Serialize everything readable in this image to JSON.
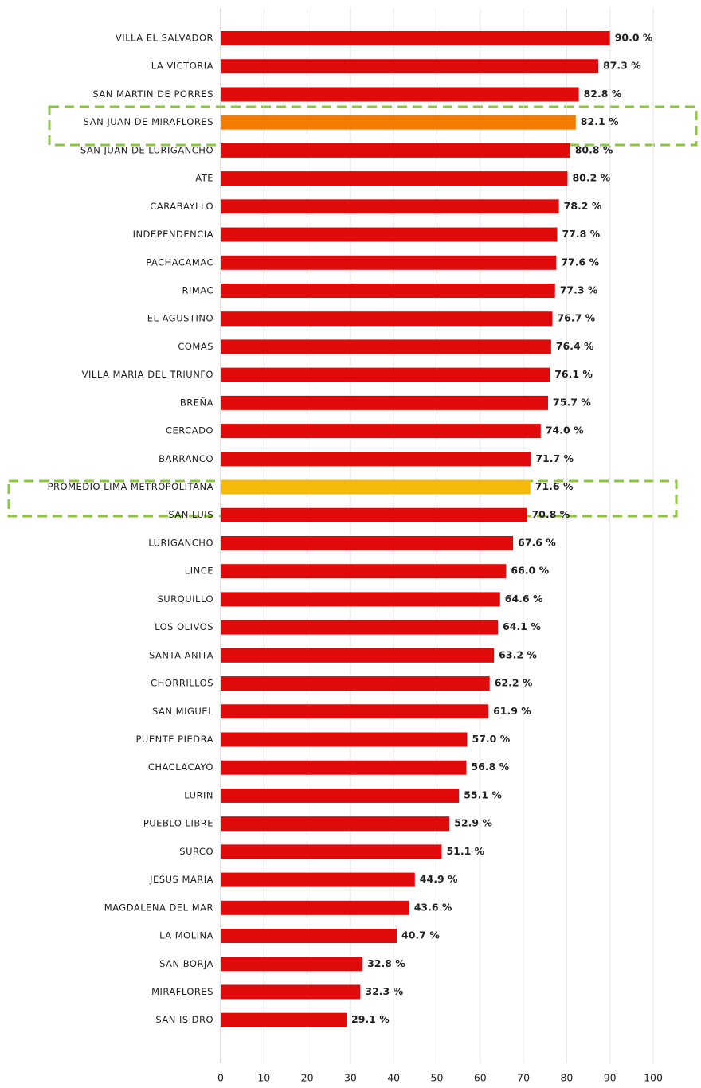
{
  "chart_data": {
    "type": "bar",
    "orientation": "horizontal",
    "categories": [
      "VILLA EL SALVADOR",
      "LA VICTORIA",
      "SAN MARTIN DE PORRES",
      "SAN JUAN DE MIRAFLORES",
      "SAN JUAN DE LURIGANCHO",
      "ATE",
      "CARABAYLLO",
      "INDEPENDENCIA",
      "PACHACAMAC",
      "RIMAC",
      "EL AGUSTINO",
      "COMAS",
      "VILLA MARIA DEL TRIUNFO",
      "BREÑA",
      "CERCADO",
      "BARRANCO",
      "PROMEDIO LIMA METROPOLITANA",
      "SAN LUIS",
      "LURIGANCHO",
      "LINCE",
      "SURQUILLO",
      "LOS OLIVOS",
      "SANTA ANITA",
      "CHORRILLOS",
      "SAN MIGUEL",
      "PUENTE PIEDRA",
      "CHACLACAYO",
      "LURIN",
      "PUEBLO LIBRE",
      "SURCO",
      "JESUS MARIA",
      "MAGDALENA DEL MAR",
      "LA MOLINA",
      "SAN BORJA",
      "MIRAFLORES",
      "SAN ISIDRO"
    ],
    "values": [
      90.0,
      87.3,
      82.8,
      82.1,
      80.8,
      80.2,
      78.2,
      77.8,
      77.6,
      77.3,
      76.7,
      76.4,
      76.1,
      75.7,
      74.0,
      71.7,
      71.6,
      70.8,
      67.6,
      66.0,
      64.6,
      64.1,
      63.2,
      62.2,
      61.9,
      57.0,
      56.8,
      55.1,
      52.9,
      51.1,
      44.9,
      43.6,
      40.7,
      32.8,
      32.3,
      29.1
    ],
    "value_labels": [
      "90.0 %",
      "87.3 %",
      "82.8 %",
      "82.1 %",
      "80.8 %",
      "80.2 %",
      "78.2 %",
      "77.8 %",
      "77.6 %",
      "77.3 %",
      "76.7 %",
      "76.4 %",
      "76.1 %",
      "75.7 %",
      "74.0 %",
      "71.7 %",
      "71.6 %",
      "70.8 %",
      "67.6 %",
      "66.0 %",
      "64.6 %",
      "64.1 %",
      "63.2 %",
      "62.2 %",
      "61.9 %",
      "57.0 %",
      "56.8 %",
      "55.1 %",
      "52.9 %",
      "51.1 %",
      "44.9 %",
      "43.6 %",
      "40.7 %",
      "32.8 %",
      "32.3 %",
      "29.1 %"
    ],
    "colors": [
      "#e00a0a",
      "#e00a0a",
      "#e00a0a",
      "#f47c00",
      "#e00a0a",
      "#e00a0a",
      "#e00a0a",
      "#e00a0a",
      "#e00a0a",
      "#e00a0a",
      "#e00a0a",
      "#e00a0a",
      "#e00a0a",
      "#e00a0a",
      "#e00a0a",
      "#e00a0a",
      "#f5b90a",
      "#e00a0a",
      "#e00a0a",
      "#e00a0a",
      "#e00a0a",
      "#e00a0a",
      "#e00a0a",
      "#e00a0a",
      "#e00a0a",
      "#e00a0a",
      "#e00a0a",
      "#e00a0a",
      "#e00a0a",
      "#e00a0a",
      "#e00a0a",
      "#e00a0a",
      "#e00a0a",
      "#e00a0a",
      "#e00a0a",
      "#e00a0a"
    ],
    "xlim": [
      0,
      100
    ],
    "xticks": [
      0,
      10,
      20,
      30,
      40,
      50,
      60,
      70,
      80,
      90,
      100
    ],
    "grid": true
  }
}
